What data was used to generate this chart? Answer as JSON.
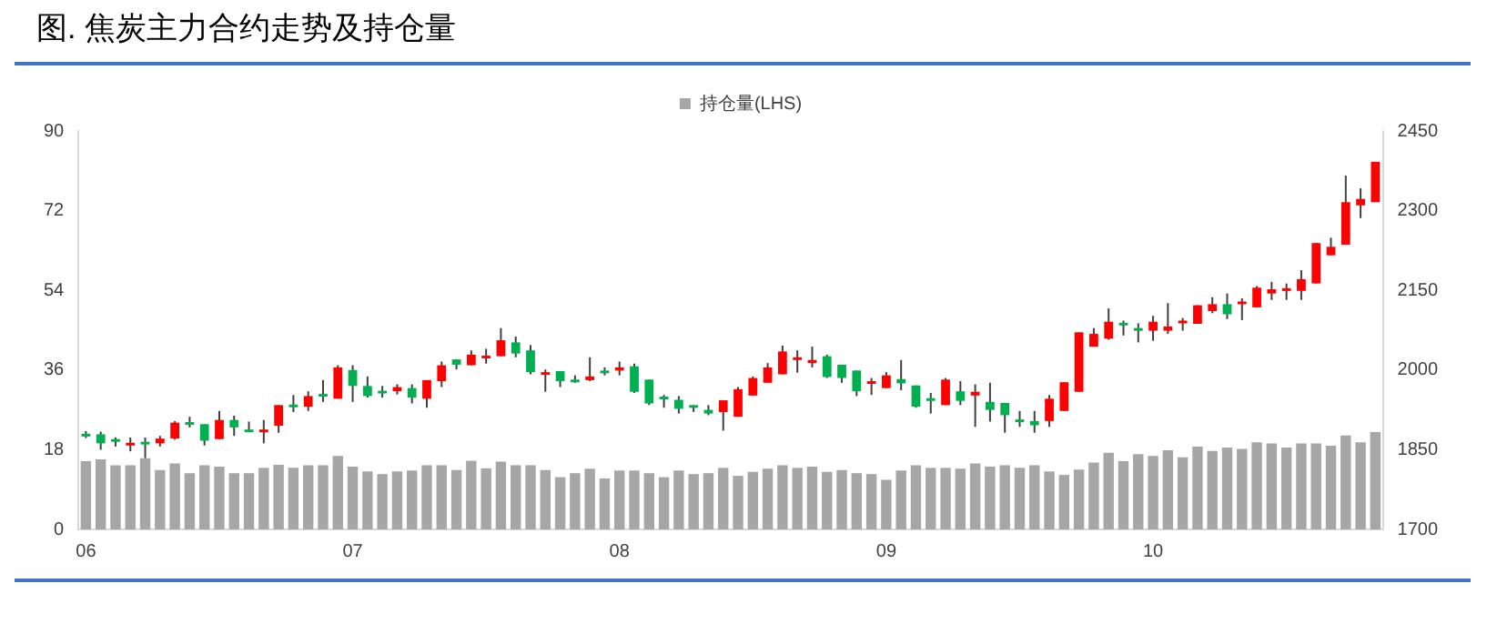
{
  "chart_data": {
    "type": "bar",
    "title": "图. 焦炭主力合约走势及持仓量",
    "categories": [
      "06",
      null,
      null,
      null,
      null,
      null,
      null,
      null,
      null,
      null,
      null,
      null,
      null,
      null,
      null,
      null,
      null,
      null,
      "07",
      null,
      null,
      null,
      null,
      null,
      null,
      null,
      null,
      null,
      null,
      null,
      null,
      null,
      null,
      null,
      null,
      null,
      "08",
      null,
      null,
      null,
      null,
      null,
      null,
      null,
      null,
      null,
      null,
      null,
      null,
      null,
      null,
      null,
      null,
      null,
      "09",
      null,
      null,
      null,
      null,
      null,
      null,
      null,
      null,
      null,
      null,
      null,
      null,
      null,
      null,
      null,
      null,
      null,
      "10",
      null,
      null,
      null,
      null,
      null,
      null,
      null,
      null,
      null,
      null,
      null,
      null,
      null,
      null,
      null
    ],
    "series": [
      {
        "name": "持仓量(LHS)",
        "color": "#a6a6a6",
        "values": [
          15.4,
          15.8,
          14.5,
          14.5,
          16.1,
          13.4,
          14.9,
          12.7,
          14.5,
          14.2,
          12.7,
          12.7,
          13.9,
          14.6,
          13.9,
          14.5,
          14.5,
          16.6,
          14.2,
          13.1,
          12.5,
          13.1,
          13.3,
          14.5,
          14.5,
          13.4,
          15.5,
          13.8,
          15.3,
          14.5,
          14.5,
          13.4,
          11.8,
          12.7,
          13.7,
          11.5,
          13.3,
          13.3,
          12.7,
          11.8,
          13.3,
          12.5,
          12.7,
          13.9,
          12.1,
          13.0,
          13.7,
          14.5,
          13.9,
          14.2,
          13.0,
          13.4,
          12.7,
          12.5,
          11.2,
          13.3,
          14.5,
          13.9,
          13.9,
          13.7,
          14.9,
          14.2,
          14.5,
          13.9,
          14.5,
          13.1,
          12.3,
          13.5,
          15.1,
          17.3,
          15.4,
          17.0,
          16.6,
          17.9,
          16.3,
          18.7,
          17.7,
          18.5,
          18.2,
          19.7,
          19.4,
          18.5,
          19.4,
          19.4,
          18.9,
          21.2,
          19.7,
          22.0
        ]
      },
      {
        "type": "candlestick",
        "axis": "y2",
        "colors": [
          "#00b050",
          "#00b050",
          "#00b050",
          "#ff0000",
          "#00b050",
          "#ff0000",
          "#ff0000",
          "#00b050",
          "#00b050",
          "#ff0000",
          "#00b050",
          "#00b050",
          "#ff0000",
          "#ff0000",
          "#00b050",
          "#ff0000",
          "#00b050",
          "#ff0000",
          "#00b050",
          "#00b050",
          "#00b050",
          "#ff0000",
          "#00b050",
          "#ff0000",
          "#ff0000",
          "#00b050",
          "#ff0000",
          "#ff0000",
          "#ff0000",
          "#00b050",
          "#00b050",
          "#ff0000",
          "#00b050",
          "#00b050",
          "#ff0000",
          "#00b050",
          "#ff0000",
          "#00b050",
          "#00b050",
          "#00b050",
          "#00b050",
          "#00b050",
          "#00b050",
          "#ff0000",
          "#ff0000",
          "#ff0000",
          "#ff0000",
          "#ff0000",
          "#ff0000",
          "#ff0000",
          "#00b050",
          "#00b050",
          "#00b050",
          "#ff0000",
          "#ff0000",
          "#00b050",
          "#00b050",
          "#00b050",
          "#ff0000",
          "#00b050",
          "#ff0000",
          "#00b050",
          "#00b050",
          "#00b050",
          "#00b050",
          "#ff0000",
          "#ff0000",
          "#ff0000",
          "#ff0000",
          "#ff0000",
          "#00b050",
          "#00b050",
          "#ff0000",
          "#ff0000",
          "#ff0000",
          "#ff0000",
          "#ff0000",
          "#00b050",
          "#ff0000",
          "#ff0000",
          "#ff0000",
          "#ff0000",
          "#ff0000",
          "#ff0000",
          "#ff0000",
          "#ff0000",
          "#ff0000",
          "#ff0000"
        ],
        "ohlc": [
          [
            1880,
            1885,
            1872,
            1876
          ],
          [
            1879,
            1884,
            1850,
            1862
          ],
          [
            1870,
            1873,
            1856,
            1866
          ],
          [
            1860,
            1873,
            1847,
            1863
          ],
          [
            1865,
            1873,
            1834,
            1863
          ],
          [
            1862,
            1876,
            1856,
            1871
          ],
          [
            1871,
            1904,
            1869,
            1901
          ],
          [
            1902,
            1912,
            1892,
            1899
          ],
          [
            1898,
            1898,
            1858,
            1867
          ],
          [
            1870,
            1923,
            1870,
            1906
          ],
          [
            1906,
            1914,
            1876,
            1892
          ],
          [
            1888,
            1903,
            1883,
            1886
          ],
          [
            1885,
            1906,
            1862,
            1888
          ],
          [
            1895,
            1934,
            1882,
            1934
          ],
          [
            1935,
            1953,
            1921,
            1933
          ],
          [
            1931,
            1960,
            1923,
            1951
          ],
          [
            1955,
            1981,
            1940,
            1952
          ],
          [
            1946,
            2009,
            1946,
            2005
          ],
          [
            2000,
            2009,
            1940,
            1970
          ],
          [
            1970,
            1988,
            1948,
            1951
          ],
          [
            1961,
            1970,
            1948,
            1958
          ],
          [
            1960,
            1973,
            1954,
            1968
          ],
          [
            1966,
            1973,
            1937,
            1948
          ],
          [
            1946,
            1981,
            1929,
            1981
          ],
          [
            1979,
            2016,
            1968,
            2009
          ],
          [
            2020,
            2020,
            2001,
            2010
          ],
          [
            2009,
            2037,
            2009,
            2029
          ],
          [
            2024,
            2040,
            2012,
            2027
          ],
          [
            2026,
            2079,
            2026,
            2056
          ],
          [
            2052,
            2063,
            2024,
            2031
          ],
          [
            2037,
            2047,
            1992,
            1996
          ],
          [
            1994,
            2001,
            1959,
            1996
          ],
          [
            1998,
            1998,
            1968,
            1979
          ],
          [
            1982,
            1990,
            1976,
            1980
          ],
          [
            1981,
            2024,
            1979,
            1988
          ],
          [
            1999,
            2005,
            1990,
            1997
          ],
          [
            1999,
            2016,
            1990,
            2005
          ],
          [
            2007,
            2012,
            1957,
            1959
          ],
          [
            1982,
            1982,
            1934,
            1937
          ],
          [
            1950,
            1953,
            1929,
            1948
          ],
          [
            1944,
            1951,
            1918,
            1927
          ],
          [
            1934,
            1934,
            1921,
            1932
          ],
          [
            1925,
            1934,
            1915,
            1918
          ],
          [
            1921,
            1943,
            1886,
            1943
          ],
          [
            1912,
            1968,
            1912,
            1964
          ],
          [
            1952,
            1988,
            1952,
            1985
          ],
          [
            1976,
            2013,
            1976,
            2005
          ],
          [
            1992,
            2046,
            1992,
            2035
          ],
          [
            2022,
            2037,
            1995,
            2024
          ],
          [
            2013,
            2044,
            2005,
            2019
          ],
          [
            2026,
            2029,
            1985,
            1987
          ],
          [
            2010,
            2010,
            1976,
            1985
          ],
          [
            1999,
            1999,
            1951,
            1960
          ],
          [
            1977,
            1985,
            1953,
            1979
          ],
          [
            1966,
            1996,
            1966,
            1990
          ],
          [
            1983,
            2019,
            1962,
            1975
          ],
          [
            1971,
            1971,
            1929,
            1931
          ],
          [
            1947,
            1957,
            1918,
            1945
          ],
          [
            1934,
            1985,
            1934,
            1982
          ],
          [
            1960,
            1979,
            1934,
            1942
          ],
          [
            1952,
            1973,
            1893,
            1959
          ],
          [
            1940,
            1976,
            1903,
            1925
          ],
          [
            1938,
            1938,
            1882,
            1915
          ],
          [
            1907,
            1923,
            1893,
            1905
          ],
          [
            1904,
            1923,
            1882,
            1896
          ],
          [
            1904,
            1953,
            1893,
            1946
          ],
          [
            1923,
            1977,
            1923,
            1977
          ],
          [
            1959,
            2071,
            1959,
            2071
          ],
          [
            2044,
            2079,
            2044,
            2068
          ],
          [
            2059,
            2116,
            2057,
            2091
          ],
          [
            2089,
            2093,
            2065,
            2087
          ],
          [
            2079,
            2088,
            2052,
            2077
          ],
          [
            2074,
            2102,
            2055,
            2091
          ],
          [
            2074,
            2126,
            2068,
            2082
          ],
          [
            2091,
            2098,
            2074,
            2093
          ],
          [
            2087,
            2122,
            2087,
            2122
          ],
          [
            2111,
            2137,
            2107,
            2124
          ],
          [
            2124,
            2144,
            2096,
            2105
          ],
          [
            2126,
            2135,
            2094,
            2129
          ],
          [
            2118,
            2158,
            2118,
            2155
          ],
          [
            2144,
            2166,
            2132,
            2152
          ],
          [
            2153,
            2163,
            2132,
            2154
          ],
          [
            2149,
            2188,
            2132,
            2171
          ],
          [
            2163,
            2239,
            2163,
            2239
          ],
          [
            2216,
            2249,
            2216,
            2232
          ],
          [
            2236,
            2366,
            2236,
            2316
          ],
          [
            2310,
            2342,
            2286,
            2322
          ],
          [
            2316,
            2392,
            2316,
            2392
          ]
        ]
      }
    ],
    "ylim": [
      0,
      90
    ],
    "yticks": [
      0,
      18,
      36,
      54,
      72,
      90
    ],
    "y2lim": [
      1700,
      2450
    ],
    "y2ticks": [
      1700,
      1850,
      2000,
      2150,
      2300,
      2450
    ],
    "legend": "top",
    "grid": false
  }
}
